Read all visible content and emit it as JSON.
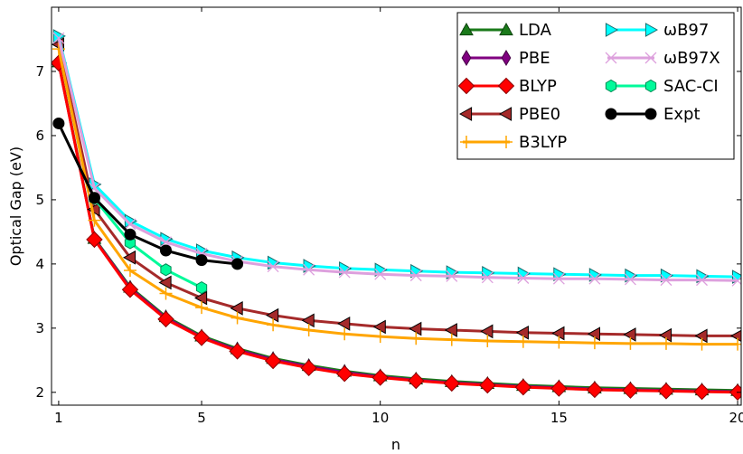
{
  "chart_data": {
    "type": "line",
    "xlabel": "n",
    "ylabel": "Optical Gap (eV)",
    "xlim": [
      0.8,
      20.1
    ],
    "ylim": [
      1.8,
      8.0
    ],
    "xticks": [
      1,
      5,
      10,
      15,
      20
    ],
    "yticks": [
      2,
      3,
      4,
      5,
      6,
      7
    ],
    "xtick_labels": [
      "1",
      "5",
      "10",
      "15",
      "20"
    ],
    "ytick_labels": [
      "2",
      "3",
      "4",
      "5",
      "6",
      "7"
    ],
    "grid": false,
    "legend_position": "top-right",
    "series": [
      {
        "name": "LDA",
        "marker": "triangle-up",
        "color": "#1a7a1a",
        "x": [
          1,
          2,
          3,
          4,
          5,
          6,
          7,
          8,
          9,
          10,
          11,
          12,
          13,
          14,
          15,
          16,
          17,
          18,
          19,
          20
        ],
        "y": [
          7.15,
          4.4,
          3.64,
          3.18,
          2.88,
          2.68,
          2.53,
          2.42,
          2.33,
          2.26,
          2.21,
          2.17,
          2.14,
          2.11,
          2.09,
          2.07,
          2.06,
          2.05,
          2.04,
          2.03
        ]
      },
      {
        "name": "PBE",
        "marker": "thin-diamond",
        "color": "#800080",
        "x": [
          1,
          2,
          3,
          4,
          5,
          6,
          7,
          8,
          9,
          10,
          11,
          12,
          13,
          14,
          15,
          16,
          17,
          18,
          19,
          20
        ],
        "y": [
          7.13,
          4.39,
          3.62,
          3.16,
          2.86,
          2.66,
          2.51,
          2.4,
          2.31,
          2.24,
          2.19,
          2.15,
          2.12,
          2.09,
          2.07,
          2.05,
          2.04,
          2.03,
          2.02,
          2.01
        ]
      },
      {
        "name": "BLYP",
        "marker": "diamond",
        "color": "#ff0000",
        "x": [
          1,
          2,
          3,
          4,
          5,
          6,
          7,
          8,
          9,
          10,
          11,
          12,
          13,
          14,
          15,
          16,
          17,
          18,
          19,
          20
        ],
        "y": [
          7.13,
          4.38,
          3.6,
          3.14,
          2.85,
          2.64,
          2.49,
          2.38,
          2.29,
          2.23,
          2.18,
          2.14,
          2.11,
          2.08,
          2.06,
          2.04,
          2.03,
          2.02,
          2.01,
          2.0
        ]
      },
      {
        "name": "PBE0",
        "marker": "triangle-left",
        "color": "#a52a2a",
        "x": [
          1,
          2,
          3,
          4,
          5,
          6,
          7,
          8,
          9,
          10,
          11,
          12,
          13,
          14,
          15,
          16,
          17,
          18,
          19,
          20
        ],
        "y": [
          7.42,
          4.85,
          4.1,
          3.71,
          3.47,
          3.31,
          3.2,
          3.12,
          3.07,
          3.02,
          2.99,
          2.97,
          2.95,
          2.93,
          2.92,
          2.91,
          2.9,
          2.89,
          2.88,
          2.88
        ]
      },
      {
        "name": "B3LYP",
        "marker": "plus",
        "color": "#ffa500",
        "x": [
          1,
          2,
          3,
          4,
          5,
          6,
          7,
          8,
          9,
          10,
          11,
          12,
          13,
          14,
          15,
          16,
          17,
          18,
          19,
          20
        ],
        "y": [
          7.35,
          4.68,
          3.9,
          3.54,
          3.32,
          3.16,
          3.05,
          2.97,
          2.91,
          2.87,
          2.84,
          2.82,
          2.8,
          2.79,
          2.78,
          2.77,
          2.76,
          2.76,
          2.75,
          2.75
        ]
      },
      {
        "name": "ωB97",
        "marker": "triangle-right",
        "color": "#00ffff",
        "x": [
          1,
          2,
          3,
          4,
          5,
          6,
          7,
          8,
          9,
          10,
          11,
          12,
          13,
          14,
          15,
          16,
          17,
          18,
          19,
          20
        ],
        "y": [
          7.55,
          5.24,
          4.67,
          4.39,
          4.21,
          4.1,
          4.02,
          3.97,
          3.93,
          3.91,
          3.89,
          3.87,
          3.86,
          3.85,
          3.84,
          3.83,
          3.82,
          3.82,
          3.81,
          3.8
        ]
      },
      {
        "name": "ωB97X",
        "marker": "x",
        "color": "#dda0dd",
        "x": [
          1,
          2,
          3,
          4,
          5,
          6,
          7,
          8,
          9,
          10,
          11,
          12,
          13,
          14,
          15,
          16,
          17,
          18,
          19,
          20
        ],
        "y": [
          7.52,
          5.18,
          4.62,
          4.34,
          4.16,
          4.04,
          3.96,
          3.91,
          3.87,
          3.84,
          3.82,
          3.81,
          3.79,
          3.78,
          3.77,
          3.77,
          3.76,
          3.75,
          3.75,
          3.74
        ]
      },
      {
        "name": "SAC-CI",
        "marker": "hexagon",
        "color": "#00fa9a",
        "x": [
          2,
          3,
          4,
          5
        ],
        "y": [
          5.02,
          4.33,
          3.91,
          3.63
        ]
      },
      {
        "name": "Expt",
        "marker": "circle",
        "color": "#000000",
        "x": [
          1,
          2,
          3,
          4,
          5,
          6
        ],
        "y": [
          6.19,
          5.03,
          4.46,
          4.21,
          4.06,
          4.0
        ]
      }
    ]
  }
}
